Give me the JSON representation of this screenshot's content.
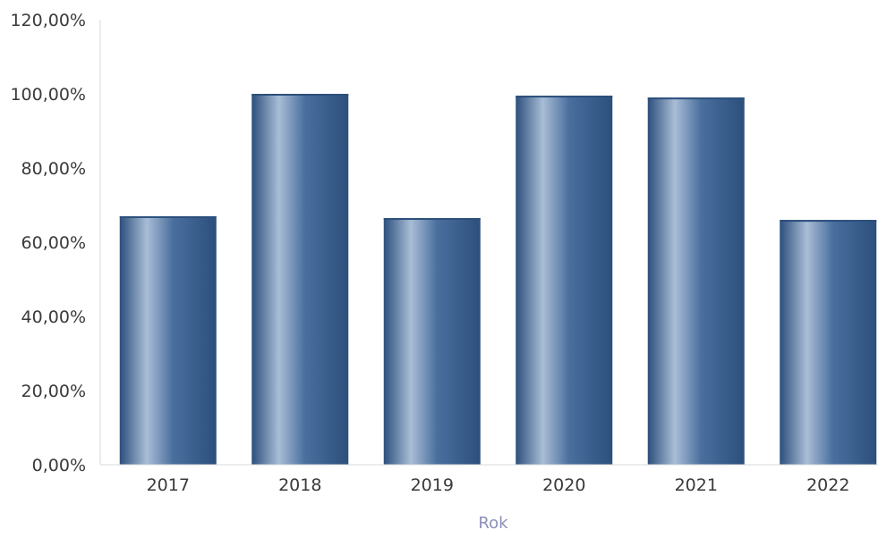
{
  "chart_data": {
    "type": "bar",
    "categories": [
      "2017",
      "2018",
      "2019",
      "2020",
      "2021",
      "2022"
    ],
    "values": [
      67,
      100,
      66.5,
      99.5,
      99,
      66
    ],
    "xlabel": "Rok",
    "ylabel": "",
    "ylim": [
      0,
      120
    ],
    "yticks": [
      "0,00%",
      "20,00%",
      "40,00%",
      "60,00%",
      "80,00%",
      "100,00%",
      "120,00%"
    ],
    "grid": false,
    "legend": "none",
    "colors": {
      "bar_dark": "#2c4f7c",
      "bar_mid": "#4a6f9e",
      "bar_light": "#a9bdd6",
      "axis": "#d8d8d8",
      "tick_text": "#3a3a3a",
      "axis_title": "#8b8fb8"
    }
  }
}
